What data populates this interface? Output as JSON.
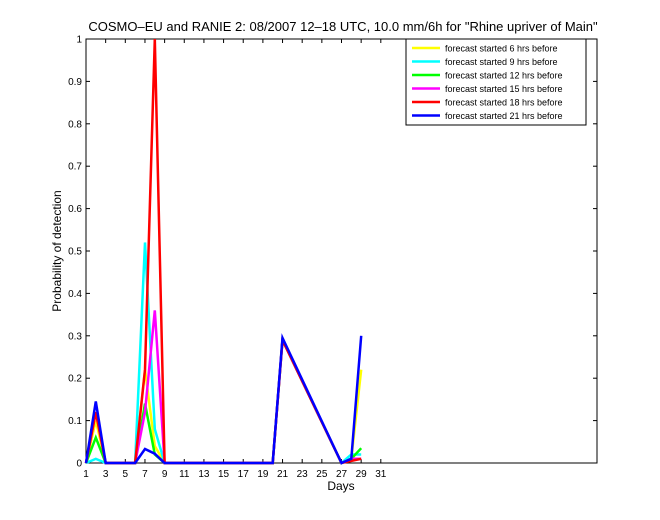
{
  "chart_data": {
    "type": "line",
    "title": "COSMO–EU and RANIE 2: 08/2007 12–18 UTC, 10.0 mm/6h for \"Rhine upriver of Main\"",
    "xlabel": "Days",
    "ylabel": "Probability of detection",
    "xlim": [
      1,
      53
    ],
    "ylim": [
      0,
      1
    ],
    "x_ticks": [
      1,
      3,
      5,
      7,
      9,
      11,
      13,
      15,
      17,
      19,
      21,
      23,
      25,
      27,
      29,
      31
    ],
    "x_tick_labels": [
      "1",
      "3",
      "5",
      "7",
      "9",
      "11",
      "13",
      "15",
      "17",
      "19",
      "21",
      "23",
      "25",
      "27",
      "29",
      "31"
    ],
    "y_ticks": [
      0,
      0.1,
      0.2,
      0.3,
      0.4,
      0.5,
      0.6,
      0.7,
      0.8,
      0.9,
      1
    ],
    "y_tick_labels": [
      "0",
      "0.1",
      "0.2",
      "0.3",
      "0.4",
      "0.5",
      "0.6",
      "0.7",
      "0.8",
      "0.9",
      "1"
    ],
    "grid": false,
    "legend_position": "top-right",
    "series": [
      {
        "name": "forecast started 6 hrs before",
        "color": "#ffff00",
        "points": [
          [
            1,
            0
          ],
          [
            2,
            0.1
          ],
          [
            3,
            0
          ],
          [
            6,
            0
          ],
          [
            7,
            0.22
          ],
          [
            8,
            0.04
          ],
          [
            9,
            0
          ],
          [
            20,
            0
          ],
          [
            21,
            0.29
          ],
          [
            27,
            0
          ],
          [
            28,
            0.01
          ],
          [
            29,
            0.22
          ]
        ]
      },
      {
        "name": "forecast started 9 hrs before",
        "color": "#00ffff",
        "points": [
          [
            1,
            0
          ],
          [
            2,
            0.01
          ],
          [
            3,
            0
          ],
          [
            6,
            0
          ],
          [
            7,
            0.52
          ],
          [
            8,
            0.08
          ],
          [
            9,
            0
          ],
          [
            20,
            0
          ],
          [
            21,
            0.29
          ],
          [
            27,
            0
          ],
          [
            28,
            0.02
          ],
          [
            29,
            0.02
          ]
        ]
      },
      {
        "name": "forecast started 12 hrs before",
        "color": "#00ff00",
        "points": [
          [
            1,
            0
          ],
          [
            2,
            0.06
          ],
          [
            3,
            0
          ],
          [
            6,
            0
          ],
          [
            7,
            0.14
          ],
          [
            8,
            0.02
          ],
          [
            9,
            0
          ],
          [
            20,
            0
          ],
          [
            21,
            0.29
          ],
          [
            27,
            0
          ],
          [
            28,
            0.01
          ],
          [
            29,
            0.035
          ]
        ]
      },
      {
        "name": "forecast started 15 hrs before",
        "color": "#ff00ff",
        "points": [
          [
            1,
            0
          ],
          [
            2,
            0.12
          ],
          [
            3,
            0
          ],
          [
            6,
            0
          ],
          [
            7,
            0.12
          ],
          [
            8,
            0.36
          ],
          [
            9,
            0
          ],
          [
            20,
            0
          ],
          [
            21,
            0.29
          ],
          [
            27,
            0
          ],
          [
            28,
            0.01
          ],
          [
            29,
            0.01
          ]
        ]
      },
      {
        "name": "forecast started 18 hrs before",
        "color": "#ff0000",
        "points": [
          [
            1,
            0
          ],
          [
            2,
            0.12
          ],
          [
            3,
            0
          ],
          [
            6,
            0
          ],
          [
            7,
            0.22
          ],
          [
            8,
            1.0
          ],
          [
            9,
            0
          ],
          [
            20,
            0
          ],
          [
            21,
            0.29
          ],
          [
            27,
            0
          ],
          [
            28,
            0.005
          ],
          [
            29,
            0.01
          ]
        ]
      },
      {
        "name": "forecast started 21 hrs before",
        "color": "#0000ff",
        "points": [
          [
            1,
            0
          ],
          [
            2,
            0.145
          ],
          [
            3,
            0
          ],
          [
            6,
            0
          ],
          [
            7,
            0.033
          ],
          [
            8,
            0.022
          ],
          [
            9,
            0
          ],
          [
            20,
            0
          ],
          [
            21,
            0.295
          ],
          [
            27,
            0
          ],
          [
            28,
            0.01
          ],
          [
            29,
            0.3
          ]
        ]
      }
    ]
  }
}
